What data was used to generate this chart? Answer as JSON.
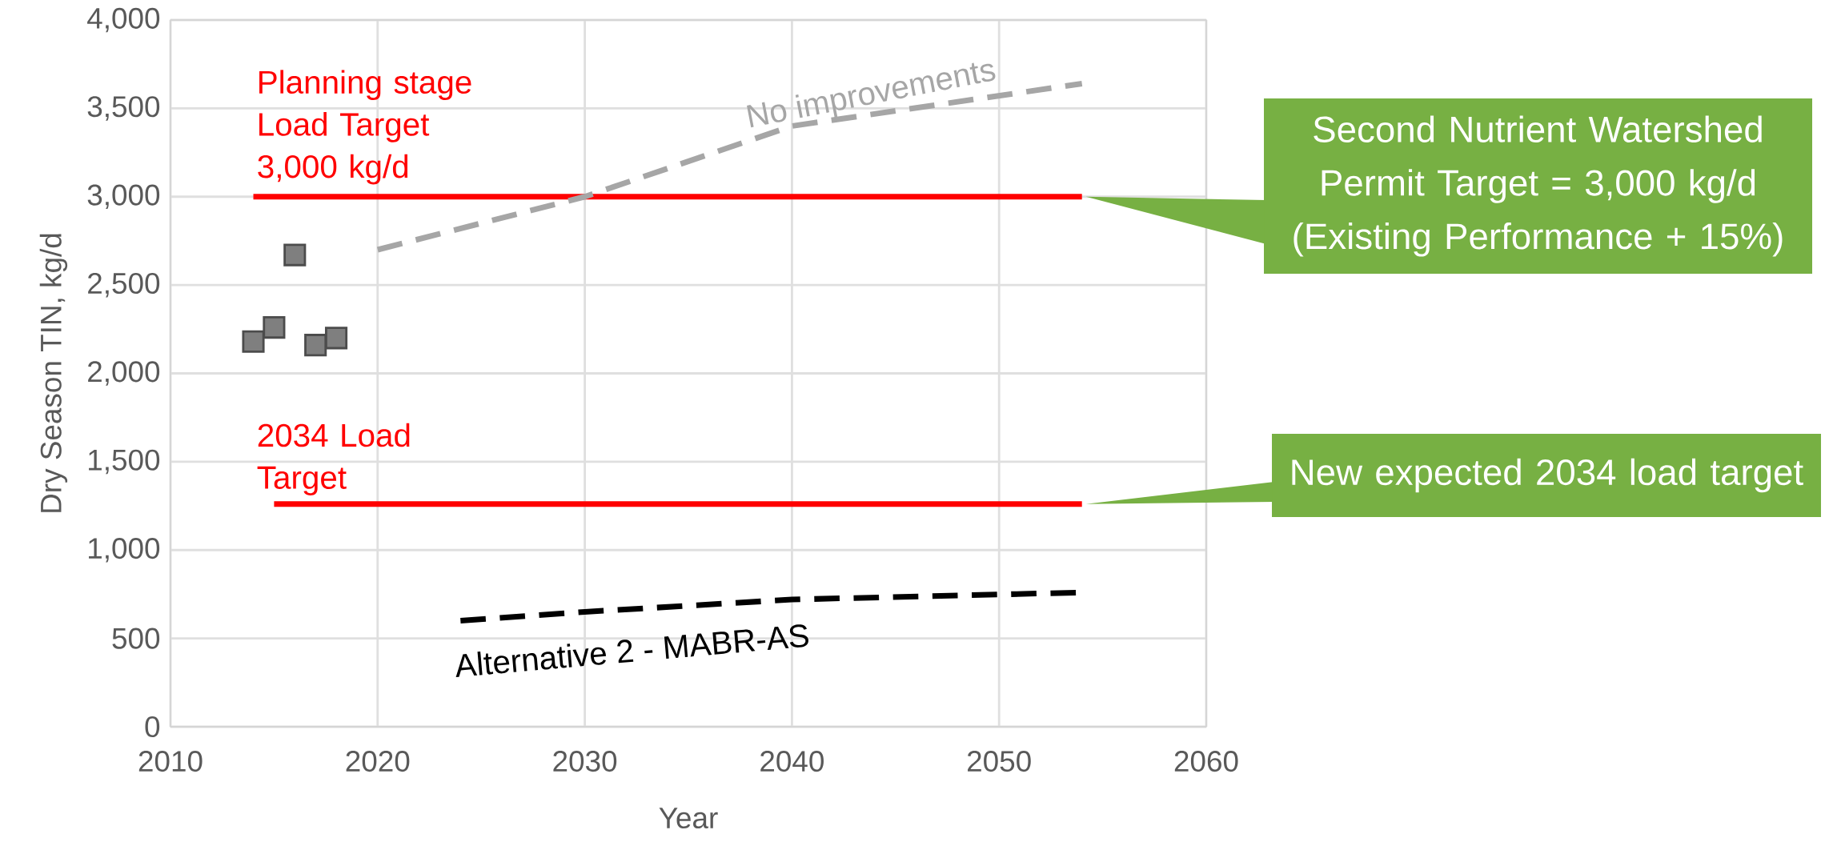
{
  "chart_data": {
    "type": "line",
    "xlabel": "Year",
    "ylabel": "Dry Season TIN, kg/d",
    "xlim": [
      2010,
      2060
    ],
    "xticks": [
      2010,
      2020,
      2030,
      2040,
      2050,
      2060
    ],
    "ylim": [
      0,
      4000
    ],
    "yticks": [
      0,
      500,
      {
        "value": 1000,
        "label": "1,000"
      },
      {
        "value": 1500,
        "label": "1,500"
      },
      {
        "value": 2000,
        "label": "2,000"
      },
      {
        "value": 2500,
        "label": "2,500"
      },
      {
        "value": 3000,
        "label": "3,000"
      },
      {
        "value": 3500,
        "label": "3,500"
      },
      {
        "value": 4000,
        "label": "4,000"
      }
    ],
    "grid": true,
    "series": [
      {
        "type": "scatter",
        "marker": "square",
        "color": "#7f7f7f",
        "x": [
          2014,
          2015,
          2016,
          2017,
          2018
        ],
        "values": [
          2180,
          2260,
          2670,
          2160,
          2200
        ]
      },
      {
        "name": "Planning stage Load Target 3,000 kg/d",
        "color": "#ff0000",
        "line_style": "solid",
        "x": [
          2014,
          2054
        ],
        "values": [
          3000,
          3000
        ]
      },
      {
        "name": "2034 Load Target",
        "color": "#ff0000",
        "line_style": "solid",
        "x": [
          2015,
          2054
        ],
        "values": [
          1260,
          1260
        ]
      },
      {
        "name": "No improvements",
        "color": "#a6a6a6",
        "line_style": "dashed",
        "x": [
          2020,
          2030,
          2040,
          2054
        ],
        "values": [
          2700,
          3000,
          3400,
          3640
        ]
      },
      {
        "name": "Alternative 2 - MABR-AS",
        "color": "#000000",
        "line_style": "dashed",
        "x": [
          2024,
          2030,
          2040,
          2054
        ],
        "values": [
          600,
          650,
          720,
          760
        ]
      }
    ],
    "annotations": [
      {
        "text": "Second Nutrient Watershed Permit Target = 3,000 kg/d (Existing Performance + 15%)",
        "x": 2054,
        "y": 3000
      },
      {
        "text": "New expected 2034 load target",
        "x": 2054,
        "y": 1260
      }
    ]
  }
}
